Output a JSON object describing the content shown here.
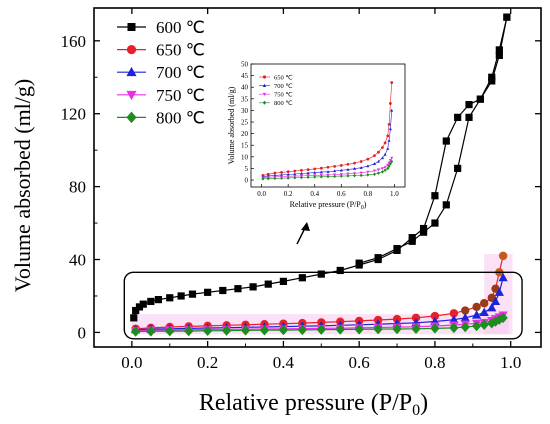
{
  "chart_data": {
    "type": "scatter",
    "main": {
      "xlabel_prefix": "Relative pressure (P/P",
      "xlabel_sub": "0",
      "xlabel_suffix": ")",
      "ylabel": "Volume absorbed (ml/g)",
      "xlim": [
        -0.1,
        1.08
      ],
      "ylim": [
        -8,
        178
      ],
      "xticks": [
        "0.0",
        "0.2",
        "0.4",
        "0.6",
        "0.8",
        "1.0"
      ],
      "xtick_values": [
        0,
        0.2,
        0.4,
        0.6,
        0.8,
        1.0
      ],
      "yticks": [
        "0",
        "40",
        "80",
        "120",
        "160"
      ],
      "ytick_values": [
        0,
        40,
        80,
        120,
        160
      ],
      "grid": false,
      "legend_position": "top-left",
      "series": [
        {
          "name": "600 ℃",
          "color": "#000000",
          "marker": "square",
          "adsorption": {
            "x": [
              0.005,
              0.01,
              0.02,
              0.03,
              0.05,
              0.07,
              0.1,
              0.13,
              0.16,
              0.2,
              0.24,
              0.28,
              0.32,
              0.36,
              0.4,
              0.45,
              0.5,
              0.55,
              0.6,
              0.65,
              0.7,
              0.74,
              0.77,
              0.8,
              0.83,
              0.86,
              0.89,
              0.92,
              0.95,
              0.97,
              0.99
            ],
            "y": [
              8,
              12,
              14,
              15.5,
              17,
              18,
              19,
              20,
              21,
              22,
              23,
              24,
              25,
              26.5,
              28,
              30,
              32,
              34,
              37,
              40,
              45,
              52,
              57,
              75,
              105,
              118,
              125,
              128,
              138,
              152,
              173
            ]
          },
          "desorption": {
            "x": [
              0.99,
              0.97,
              0.95,
              0.92,
              0.89,
              0.86,
              0.83,
              0.8,
              0.77,
              0.74,
              0.7,
              0.65,
              0.6
            ],
            "y": [
              173,
              155,
              140,
              128,
              118,
              90,
              70,
              60,
              55,
              50,
              46,
              41,
              38
            ]
          }
        },
        {
          "name": "650 ℃",
          "color": "#e8202a",
          "marker": "circle",
          "adsorption": {
            "x": [
              0.01,
              0.05,
              0.1,
              0.15,
              0.2,
              0.25,
              0.3,
              0.35,
              0.4,
              0.45,
              0.5,
              0.55,
              0.6,
              0.65,
              0.7,
              0.75,
              0.8,
              0.85,
              0.88,
              0.91,
              0.93,
              0.95,
              0.96,
              0.97,
              0.98
            ],
            "y": [
              2,
              2.5,
              3,
              3.3,
              3.6,
              3.9,
              4.2,
              4.5,
              4.8,
              5.1,
              5.5,
              5.9,
              6.3,
              6.8,
              7.3,
              8,
              9,
              10.5,
              12,
              14,
              16,
              19,
              24,
              33,
              42
            ]
          },
          "desorption": {
            "x": [],
            "y": []
          }
        },
        {
          "name": "700 ℃",
          "color": "#1e22d8",
          "marker": "triangle-up",
          "adsorption": {
            "x": [
              0.01,
              0.05,
              0.1,
              0.15,
              0.2,
              0.25,
              0.3,
              0.35,
              0.4,
              0.45,
              0.5,
              0.55,
              0.6,
              0.65,
              0.7,
              0.75,
              0.8,
              0.85,
              0.88,
              0.91,
              0.93,
              0.95,
              0.96,
              0.97,
              0.98
            ],
            "y": [
              1.5,
              1.8,
              2,
              2.2,
              2.4,
              2.6,
              2.8,
              3,
              3.2,
              3.4,
              3.6,
              3.9,
              4.2,
              4.5,
              4.9,
              5.3,
              6,
              7,
              8,
              9.5,
              11,
              13.5,
              17,
              22,
              30
            ]
          },
          "desorption": {
            "x": [],
            "y": []
          }
        },
        {
          "name": "750 ℃",
          "color": "#e930e6",
          "marker": "triangle-down",
          "adsorption": {
            "x": [
              0.01,
              0.05,
              0.1,
              0.15,
              0.2,
              0.25,
              0.3,
              0.35,
              0.4,
              0.45,
              0.5,
              0.55,
              0.6,
              0.65,
              0.7,
              0.75,
              0.8,
              0.85,
              0.88,
              0.91,
              0.93,
              0.95,
              0.96,
              0.97,
              0.98
            ],
            "y": [
              1,
              1.2,
              1.4,
              1.5,
              1.6,
              1.7,
              1.8,
              1.9,
              2,
              2.1,
              2.2,
              2.3,
              2.5,
              2.7,
              2.9,
              3.1,
              3.5,
              4,
              4.5,
              5,
              5.5,
              6.5,
              7.5,
              8.5,
              9.5
            ]
          },
          "desorption": {
            "x": [],
            "y": []
          }
        },
        {
          "name": "800 ℃",
          "color": "#1e8c1e",
          "marker": "diamond",
          "adsorption": {
            "x": [
              0.01,
              0.05,
              0.1,
              0.15,
              0.2,
              0.25,
              0.3,
              0.35,
              0.4,
              0.45,
              0.5,
              0.55,
              0.6,
              0.65,
              0.7,
              0.75,
              0.8,
              0.85,
              0.88,
              0.91,
              0.93,
              0.95,
              0.96,
              0.97,
              0.98
            ],
            "y": [
              0.5,
              0.6,
              0.7,
              0.8,
              0.9,
              1,
              1.1,
              1.2,
              1.3,
              1.4,
              1.5,
              1.6,
              1.7,
              1.8,
              1.9,
              2,
              2.2,
              2.5,
              3,
              3.5,
              4.2,
              5,
              6,
              7,
              8
            ]
          },
          "desorption": {
            "x": [],
            "y": []
          }
        }
      ]
    },
    "inset": {
      "xlabel_prefix": "Relative pressure (P/P",
      "xlabel_sub": "0",
      "xlabel_suffix": ")",
      "ylabel": "Volume absorbed (ml/g)",
      "xlim": [
        -0.08,
        1.08
      ],
      "ylim": [
        -3,
        50
      ],
      "xticks": [
        "0.0",
        "0.2",
        "0.4",
        "0.6",
        "0.8",
        "1.0"
      ],
      "xtick_values": [
        0,
        0.2,
        0.4,
        0.6,
        0.8,
        1.0
      ],
      "yticks": [
        "0",
        "5",
        "10",
        "15",
        "20",
        "25",
        "30",
        "35",
        "40",
        "45",
        "50"
      ],
      "ytick_values": [
        0,
        5,
        10,
        15,
        20,
        25,
        30,
        35,
        40,
        45,
        50
      ],
      "legend_position": "top-left",
      "series_names": [
        "650 ℃",
        "700 ℃",
        "750 ℃",
        "800 ℃"
      ]
    },
    "annotation": "highlight box around low-volume region with arrow pointing to inset"
  }
}
